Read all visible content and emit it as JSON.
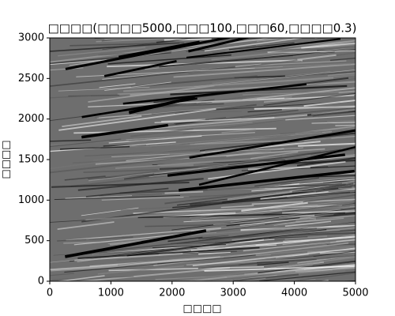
{
  "chart_data": {
    "type": "heatmap",
    "title": "□□□□(□□□□5000,□□□100,□□□60,□□□□0.3)",
    "x_label": "□□□□",
    "y_label": "□□□□",
    "xlim": [
      0,
      5000
    ],
    "ylim": [
      0,
      3000
    ],
    "xticks": [
      0,
      1000,
      2000,
      3000,
      4000,
      5000
    ],
    "yticks": [
      0,
      500,
      1000,
      1500,
      2000,
      2500,
      3000
    ],
    "colormap": "gray"
  }
}
